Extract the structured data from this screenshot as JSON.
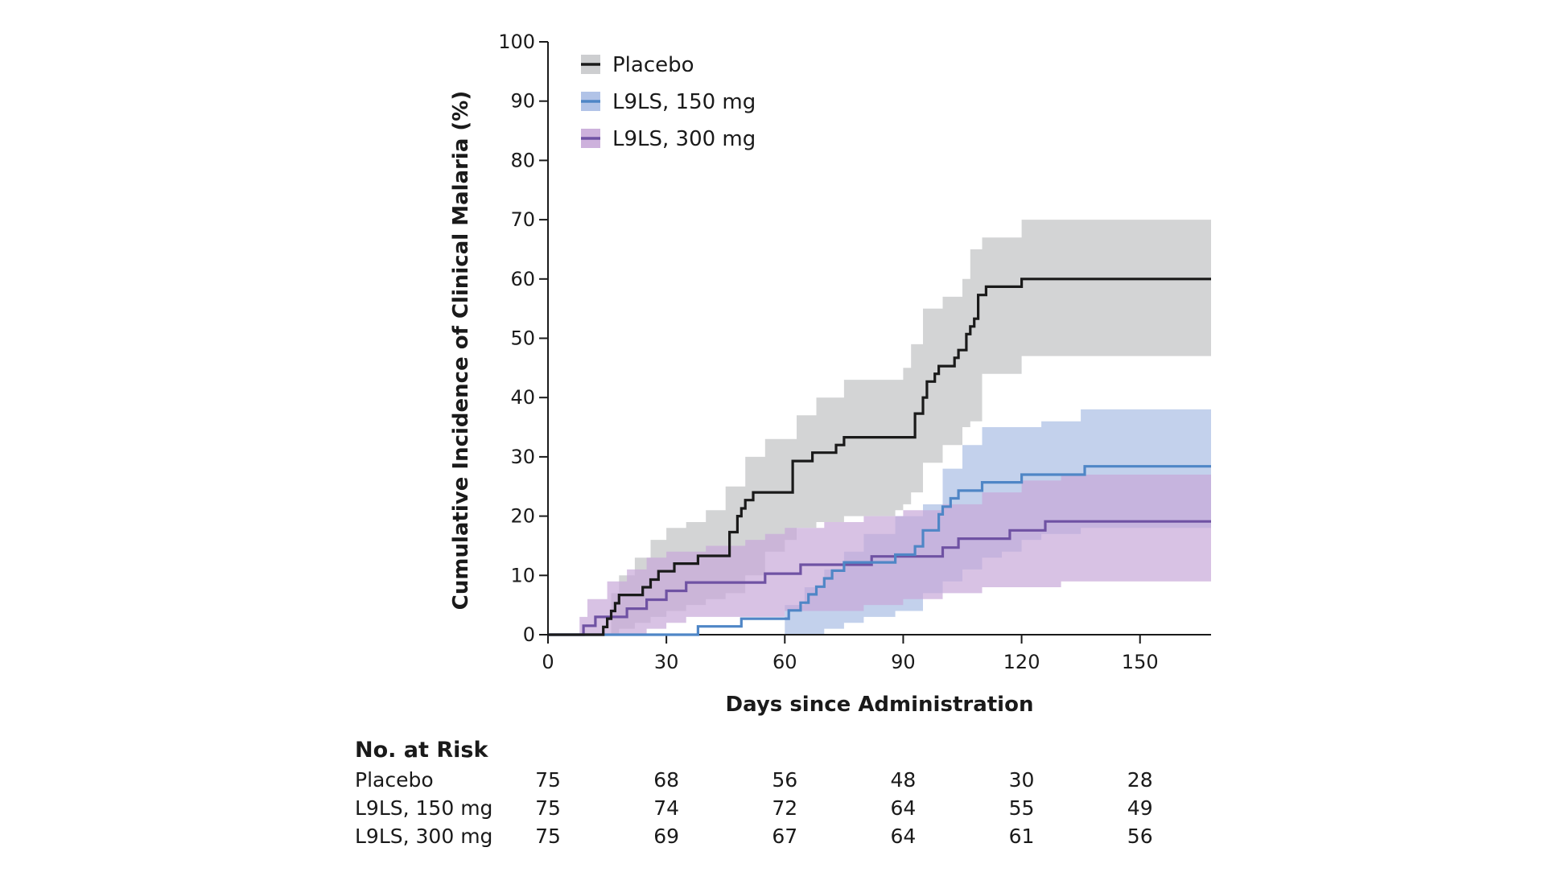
{
  "chart_data": {
    "type": "line",
    "xlabel": "Days since Administration",
    "ylabel": "Cumulative Incidence of Clinical Malaria (%)",
    "xlim": [
      0,
      168
    ],
    "ylim": [
      0,
      100
    ],
    "xticks": [
      0,
      30,
      60,
      90,
      120,
      150
    ],
    "yticks": [
      0,
      10,
      20,
      30,
      40,
      50,
      60,
      70,
      80,
      90,
      100
    ],
    "step": true,
    "confidence_bands": true,
    "legend_position": "top-left",
    "series": [
      {
        "name": "Placebo",
        "color": "#1a1a1a",
        "band_color": "#c8c9cb",
        "x": [
          0,
          14,
          15,
          16,
          17,
          18,
          19,
          20,
          24,
          26,
          28,
          30,
          32,
          35,
          38,
          40,
          44,
          46,
          48,
          49,
          50,
          52,
          56,
          62,
          63,
          67,
          73,
          75,
          80,
          85,
          92,
          93,
          95,
          96,
          98,
          99,
          103,
          104,
          106,
          107,
          108,
          109,
          111,
          120,
          168
        ],
        "y": [
          0,
          1.3,
          2.7,
          4.0,
          5.3,
          6.7,
          6.7,
          6.7,
          8.0,
          9.3,
          10.7,
          10.7,
          12.0,
          12.0,
          13.3,
          13.3,
          13.3,
          17.3,
          20.0,
          21.3,
          22.7,
          24.0,
          24.0,
          29.3,
          29.3,
          30.7,
          32.0,
          33.3,
          33.3,
          33.3,
          33.3,
          37.3,
          40.0,
          42.7,
          44.0,
          45.3,
          46.7,
          48.0,
          50.7,
          52.0,
          53.3,
          57.3,
          58.7,
          60.0,
          60.0
        ],
        "band_x": [
          0,
          9,
          16,
          18,
          22,
          26,
          30,
          35,
          40,
          45,
          50,
          55,
          60,
          63,
          68,
          75,
          80,
          88,
          90,
          92,
          95,
          100,
          105,
          107,
          110,
          120,
          168
        ],
        "band_low": [
          0,
          0,
          0,
          1,
          2,
          3,
          4,
          5,
          6,
          7,
          10,
          14,
          16,
          18,
          19,
          20,
          20,
          21,
          22,
          24,
          29,
          32,
          35,
          36,
          44,
          47,
          47
        ],
        "band_high": [
          0,
          0,
          7,
          10,
          13,
          16,
          18,
          19,
          21,
          25,
          30,
          33,
          33,
          37,
          40,
          43,
          43,
          43,
          45,
          49,
          55,
          57,
          60,
          65,
          67,
          70,
          70
        ]
      },
      {
        "name": "L9LS, 150 mg",
        "color": "#4f86c6",
        "band_color": "#a9bde4",
        "x": [
          0,
          38,
          49,
          60,
          61,
          64,
          66,
          68,
          70,
          72,
          75,
          88,
          90,
          93,
          95,
          99,
          100,
          102,
          104,
          106,
          108,
          110,
          112,
          114,
          120,
          124,
          136,
          168
        ],
        "y": [
          0,
          1.4,
          2.7,
          2.7,
          4.1,
          5.4,
          6.8,
          8.1,
          9.5,
          10.8,
          12.2,
          13.5,
          13.5,
          14.9,
          17.6,
          20.3,
          21.6,
          23.0,
          24.3,
          24.3,
          24.3,
          25.7,
          25.7,
          25.7,
          27.0,
          27.0,
          28.4,
          28.4
        ],
        "band_x": [
          0,
          38,
          50,
          60,
          65,
          70,
          75,
          80,
          88,
          95,
          100,
          105,
          110,
          115,
          120,
          125,
          135,
          168
        ],
        "band_low": [
          0,
          0,
          0,
          0,
          0,
          1,
          2,
          3,
          4,
          7,
          9,
          11,
          13,
          14,
          16,
          17,
          18,
          18
        ],
        "band_high": [
          0,
          0,
          0,
          5,
          8,
          11,
          14,
          17,
          20,
          22,
          28,
          32,
          35,
          35,
          35,
          36,
          38,
          38
        ]
      },
      {
        "name": "L9LS, 300 mg",
        "color": "#6f52a3",
        "band_color": "#c8a8d8",
        "x": [
          0,
          9,
          12,
          15,
          20,
          25,
          30,
          32,
          35,
          50,
          55,
          60,
          64,
          75,
          82,
          90,
          95,
          100,
          104,
          110,
          117,
          126,
          168
        ],
        "y": [
          0,
          1.5,
          3.0,
          3.0,
          4.4,
          5.9,
          7.4,
          7.4,
          8.8,
          8.8,
          10.3,
          10.3,
          11.8,
          11.8,
          13.2,
          13.2,
          13.2,
          14.7,
          16.2,
          16.2,
          17.6,
          19.1,
          19.1
        ],
        "band_x": [
          0,
          8,
          10,
          15,
          20,
          25,
          30,
          35,
          40,
          45,
          50,
          55,
          60,
          70,
          80,
          90,
          100,
          110,
          120,
          130,
          168
        ],
        "band_low": [
          0,
          0,
          0,
          0,
          0,
          1,
          2,
          3,
          3,
          3,
          3,
          3,
          4,
          4,
          5,
          6,
          7,
          8,
          8,
          9,
          9
        ],
        "band_high": [
          0,
          3,
          6,
          9,
          11,
          13,
          14,
          14,
          15,
          15,
          16,
          17,
          18,
          19,
          20,
          21,
          22,
          24,
          26,
          27,
          28
        ]
      }
    ],
    "risk_table": {
      "title": "No. at Risk",
      "timepoints": [
        0,
        30,
        60,
        90,
        120,
        150
      ],
      "rows": [
        {
          "label": "Placebo",
          "values": [
            "75",
            "68",
            "56",
            "48",
            "30",
            "28"
          ]
        },
        {
          "label": "L9LS, 150 mg",
          "values": [
            "75",
            "74",
            "72",
            "64",
            "55",
            "49"
          ]
        },
        {
          "label": "L9LS, 300 mg",
          "values": [
            "75",
            "69",
            "67",
            "64",
            "61",
            "56"
          ]
        }
      ]
    }
  }
}
